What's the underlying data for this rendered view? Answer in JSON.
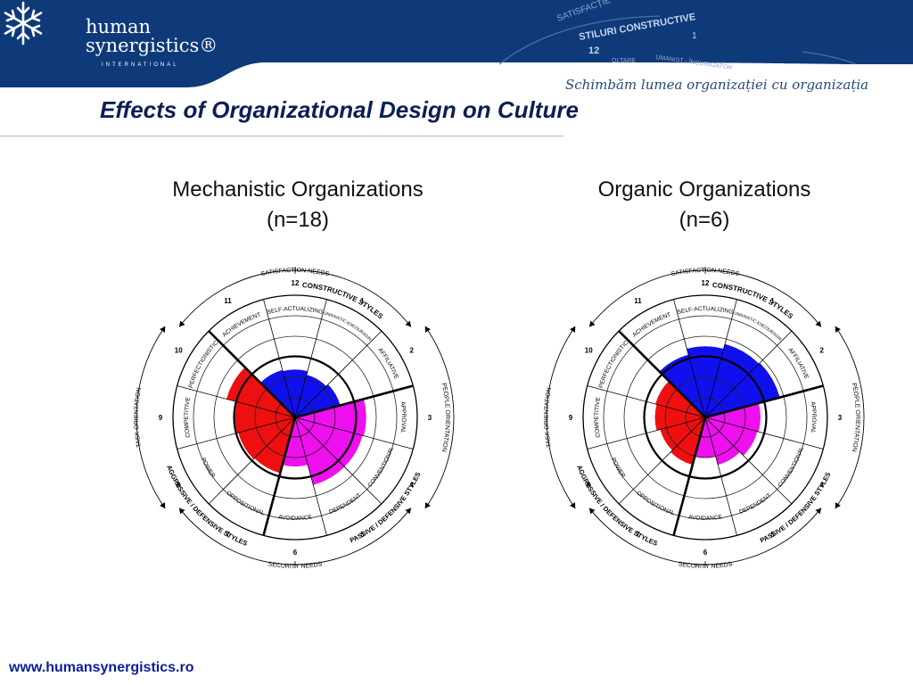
{
  "header": {
    "logo_text_line1": "human",
    "logo_text_line2": "synergistics®",
    "logo_subtext": "INTERNATIONAL",
    "backdrop_texts": [
      "SATISFACȚIE",
      "STILURI CONSTRUCTIVE",
      "12",
      "1",
      "UMANIST - ÎNCURAJATOR",
      "OLTARE"
    ],
    "tagline": "Schimbăm lumea organizației cu organizația",
    "colors": {
      "band": "#0e3a7a",
      "band_dark": "#0a2c60"
    }
  },
  "slide_title": "Effects of Organizational Design on Culture",
  "footer_url": "www.humansynergistics.ro",
  "circumplex_labels": {
    "styles": [
      "SELF-ACTUALIZING",
      "HUMANISTIC-ENCOURAGING",
      "AFFILIATIVE",
      "APPROVAL",
      "CONVENTIONAL",
      "DEPENDENT",
      "AVOIDANCE",
      "OPPOSITIONAL",
      "POWER",
      "COMPETITIVE",
      "PERFECTIONISTIC",
      "ACHIEVEMENT"
    ],
    "numbers": [
      "12",
      "1",
      "2",
      "3",
      "4",
      "5",
      "6",
      "7",
      "8",
      "9",
      "10",
      "11"
    ],
    "satisfaction_needs": "SATISFACTION NEEDS",
    "security_needs": "SECURITY NEEDS",
    "constructive": "CONSTRUCTIVE STYLES",
    "passive_defensive": "PASSIVE / DEFENSIVE STYLES",
    "aggressive_defensive": "AGGRESSIVE / DEFENSIVE STYLES",
    "task_orientation": "TASK ORIENTATION",
    "people_orientation": "PEOPLE ORIENTATION"
  },
  "chart_data": [
    {
      "type": "circumplex",
      "title_line1": "Mechanistic Organizations",
      "title_line2": "(n=18)",
      "scale_max": 100,
      "styles": [
        "SELF-ACTUALIZING",
        "HUMANISTIC-ENCOURAGING",
        "AFFILIATIVE",
        "APPROVAL",
        "CONVENTIONAL",
        "DEPENDENT",
        "AVOIDANCE",
        "OPPOSITIONAL",
        "POWER",
        "COMPETITIVE",
        "PERFECTIONISTIC",
        "ACHIEVEMENT"
      ],
      "cluster": [
        "constructive",
        "constructive",
        "constructive",
        "passive",
        "passive",
        "passive",
        "passive",
        "aggressive",
        "aggressive",
        "aggressive",
        "aggressive",
        "constructive"
      ],
      "values": [
        39,
        36,
        38,
        58,
        57,
        57,
        40,
        47,
        48,
        49,
        58,
        40
      ],
      "thick_ring": 50,
      "colors": {
        "constructive": "#1010ee",
        "passive": "#ee10ee",
        "aggressive": "#ee1010"
      }
    },
    {
      "type": "circumplex",
      "title_line1": "Organic Organizations",
      "title_line2": "(n=6)",
      "scale_max": 100,
      "styles": [
        "SELF-ACTUALIZING",
        "HUMANISTIC-ENCOURAGING",
        "AFFILIATIVE",
        "APPROVAL",
        "CONVENTIONAL",
        "DEPENDENT",
        "AVOIDANCE",
        "OPPOSITIONAL",
        "POWER",
        "COMPETITIVE",
        "PERFECTIONISTIC",
        "ACHIEVEMENT"
      ],
      "cluster": [
        "constructive",
        "constructive",
        "constructive",
        "passive",
        "passive",
        "passive",
        "passive",
        "aggressive",
        "aggressive",
        "aggressive",
        "aggressive",
        "constructive"
      ],
      "values": [
        58,
        62,
        63,
        45,
        44,
        40,
        33,
        40,
        38,
        41,
        42,
        53
      ],
      "thick_ring": 50,
      "colors": {
        "constructive": "#1010ee",
        "passive": "#ee10ee",
        "aggressive": "#ee1010"
      }
    }
  ]
}
